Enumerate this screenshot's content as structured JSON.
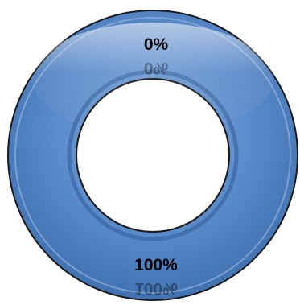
{
  "chart_data": {
    "type": "pie",
    "style": "donut",
    "slices": [
      {
        "label": "100%",
        "value": 100,
        "color": "#4f81bd"
      },
      {
        "label": "0%",
        "value": 0,
        "color": "#4f81bd"
      }
    ],
    "legend": "none"
  }
}
